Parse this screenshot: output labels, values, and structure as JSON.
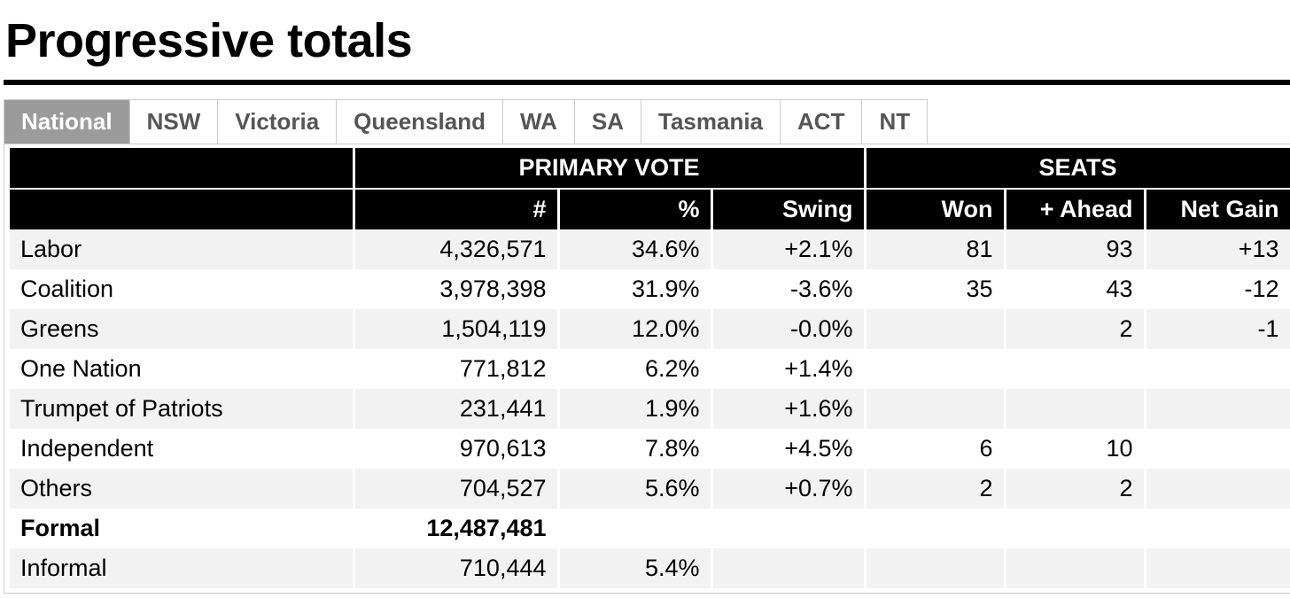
{
  "page": {
    "title": "Progressive totals"
  },
  "tabs": [
    {
      "label": "National",
      "active": true
    },
    {
      "label": "NSW",
      "active": false
    },
    {
      "label": "Victoria",
      "active": false
    },
    {
      "label": "Queensland",
      "active": false
    },
    {
      "label": "WA",
      "active": false
    },
    {
      "label": "SA",
      "active": false
    },
    {
      "label": "Tasmania",
      "active": false
    },
    {
      "label": "ACT",
      "active": false
    },
    {
      "label": "NT",
      "active": false
    }
  ],
  "table": {
    "group_headers": {
      "primary_vote": "PRIMARY VOTE",
      "seats": "SEATS"
    },
    "columns": {
      "votes": "#",
      "pct": "%",
      "swing": "Swing",
      "won": "Won",
      "ahead": "+ Ahead",
      "net": "Net Gain"
    },
    "rows": [
      {
        "party": "Labor",
        "votes": "4,326,571",
        "pct": "34.6%",
        "swing": "+2.1%",
        "won": "81",
        "ahead": "93",
        "net": "+13"
      },
      {
        "party": "Coalition",
        "votes": "3,978,398",
        "pct": "31.9%",
        "swing": "-3.6%",
        "won": "35",
        "ahead": "43",
        "net": "-12"
      },
      {
        "party": "Greens",
        "votes": "1,504,119",
        "pct": "12.0%",
        "swing": "-0.0%",
        "won": "",
        "ahead": "2",
        "net": "-1"
      },
      {
        "party": "One Nation",
        "votes": "771,812",
        "pct": "6.2%",
        "swing": "+1.4%",
        "won": "",
        "ahead": "",
        "net": ""
      },
      {
        "party": "Trumpet of Patriots",
        "votes": "231,441",
        "pct": "1.9%",
        "swing": "+1.6%",
        "won": "",
        "ahead": "",
        "net": ""
      },
      {
        "party": "Independent",
        "votes": "970,613",
        "pct": "7.8%",
        "swing": "+4.5%",
        "won": "6",
        "ahead": "10",
        "net": ""
      },
      {
        "party": "Others",
        "votes": "704,527",
        "pct": "5.6%",
        "swing": "+0.7%",
        "won": "2",
        "ahead": "2",
        "net": ""
      },
      {
        "party": "Formal",
        "votes": "12,487,481",
        "pct": "",
        "swing": "",
        "won": "",
        "ahead": "",
        "net": ""
      },
      {
        "party": "Informal",
        "votes": "710,444",
        "pct": "5.4%",
        "swing": "",
        "won": "",
        "ahead": "",
        "net": ""
      }
    ]
  }
}
